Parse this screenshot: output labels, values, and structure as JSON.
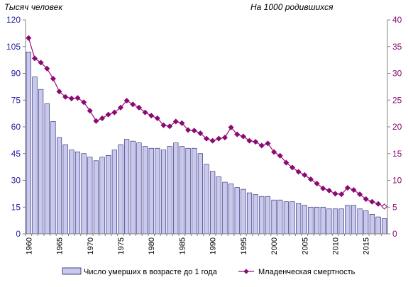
{
  "chart_data": {
    "type": "bar+line",
    "left_axis_title": "Тысяч человек",
    "right_axis_title": "На 1000 родившихся",
    "left_ylim": [
      0,
      120
    ],
    "left_ticks": [
      0,
      15,
      30,
      45,
      60,
      75,
      90,
      105,
      120
    ],
    "right_ylim": [
      0,
      40
    ],
    "right_ticks": [
      0,
      5,
      10,
      15,
      20,
      25,
      30,
      35,
      40
    ],
    "x_tick_labels": [
      "1960",
      "1965",
      "1970",
      "1975",
      "1980",
      "1985",
      "1990",
      "1995",
      "2000",
      "2005",
      "2010",
      "2015"
    ],
    "years": [
      1960,
      1961,
      1962,
      1963,
      1964,
      1965,
      1966,
      1967,
      1968,
      1969,
      1970,
      1971,
      1972,
      1973,
      1974,
      1975,
      1976,
      1977,
      1978,
      1979,
      1980,
      1981,
      1982,
      1983,
      1984,
      1985,
      1986,
      1987,
      1988,
      1989,
      1990,
      1991,
      1992,
      1993,
      1994,
      1995,
      1996,
      1997,
      1998,
      1999,
      2000,
      2001,
      2002,
      2003,
      2004,
      2005,
      2006,
      2007,
      2008,
      2009,
      2010,
      2011,
      2012,
      2013,
      2014,
      2015,
      2016,
      2017,
      2018
    ],
    "series": [
      {
        "name": "Число  умерших в возрасте до 1 года",
        "type": "bar",
        "axis": "left",
        "values": [
          102,
          88,
          81,
          73,
          63,
          54,
          50,
          47,
          46,
          45,
          43,
          41,
          43,
          44,
          47,
          50,
          53,
          52,
          51,
          49,
          48,
          48,
          47,
          49,
          51,
          49,
          48,
          48,
          45,
          39,
          35,
          32,
          29,
          28,
          26,
          25,
          23,
          22,
          21,
          21,
          19,
          19,
          18,
          18,
          17,
          16,
          15,
          15,
          15,
          14,
          14,
          14,
          16,
          16,
          14,
          13,
          11,
          9.5,
          8.5
        ]
      },
      {
        "name": "Младенческая  смертность",
        "type": "line",
        "axis": "right",
        "values": [
          36.6,
          32.8,
          32.0,
          30.9,
          29.0,
          26.6,
          25.6,
          25.3,
          25.4,
          24.6,
          23.0,
          21.1,
          21.6,
          22.3,
          22.7,
          23.6,
          24.9,
          24.2,
          23.6,
          22.7,
          22.1,
          21.6,
          20.3,
          20.1,
          21.0,
          20.7,
          19.4,
          19.3,
          18.8,
          17.8,
          17.4,
          17.8,
          18.0,
          19.9,
          18.6,
          18.2,
          17.4,
          17.2,
          16.5,
          16.9,
          15.3,
          14.6,
          13.3,
          12.4,
          11.6,
          11.0,
          10.2,
          9.4,
          8.5,
          8.1,
          7.5,
          7.4,
          8.6,
          8.2,
          7.4,
          6.5,
          6.0,
          5.6,
          5.1
        ]
      }
    ],
    "colors": {
      "bar_fill": "#c9c9ef",
      "bar_stroke": "#1a1a66",
      "line": "#9b0d7e",
      "marker": "#8b0a72",
      "left_axis": "#2222a0",
      "right_axis": "#8b0a72",
      "axis_line": "#808080"
    }
  }
}
